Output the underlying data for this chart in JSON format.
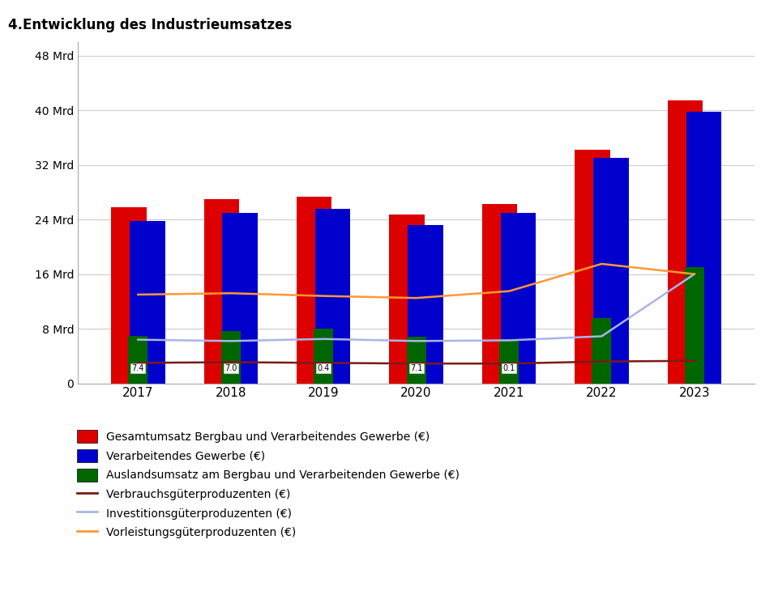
{
  "title": "4.Entwicklung des Industrieumsatzes",
  "years": [
    2017,
    2018,
    2019,
    2020,
    2021,
    2022,
    2023
  ],
  "gesamtumsatz": [
    25.8,
    27.0,
    27.3,
    24.7,
    26.3,
    34.2,
    41.5
  ],
  "verarbeitendes": [
    23.8,
    25.0,
    25.5,
    23.2,
    25.0,
    33.0,
    39.8
  ],
  "auslandsumsatz": [
    7.0,
    7.6,
    8.0,
    6.8,
    6.5,
    9.5,
    17.0
  ],
  "verbrauchsgueter": [
    3.0,
    3.1,
    3.0,
    2.9,
    2.9,
    3.2,
    3.3
  ],
  "investitionsgueter": [
    6.4,
    6.2,
    6.5,
    6.2,
    6.3,
    6.9,
    16.0
  ],
  "vorleistungsgueter": [
    13.0,
    13.2,
    12.8,
    12.5,
    13.5,
    17.5,
    16.0
  ],
  "bar_width": 0.38,
  "colors": {
    "gesamtumsatz": "#dd0000",
    "verarbeitendes": "#0000cc",
    "auslandsumsatz": "#006600",
    "verbrauchsgueter": "#7b1a1a",
    "investitionsgueter": "#aab4e8",
    "vorleistungsgueter": "#ff9933"
  },
  "ytick_labels": [
    "0",
    "8 Mrd",
    "16 Mrd",
    "24 Mrd",
    "32 Mrd",
    "40 Mrd",
    "48 Mrd"
  ],
  "ytick_values": [
    0,
    8,
    16,
    24,
    32,
    40,
    48
  ],
  "ylim": [
    0,
    50
  ],
  "legend_labels": [
    "Gesamtumsatz Bergbau und Verarbeitendes Gewerbe (€)",
    "Verarbeitendes Gewerbe (€)",
    "Auslandsumsatz am Bergbau und Verarbeitenden Gewerbe (€)",
    "Verbrauchsgüterproduzenten (€)",
    "Investitionsgüterproduzenten (€)",
    "Vorleistungsgüterproduzenten (€)"
  ],
  "annot_indices": [
    0,
    1,
    2,
    3,
    4
  ],
  "annot_texts": [
    "7.4",
    "7.0",
    "0.4",
    "7.1",
    "0.1"
  ]
}
